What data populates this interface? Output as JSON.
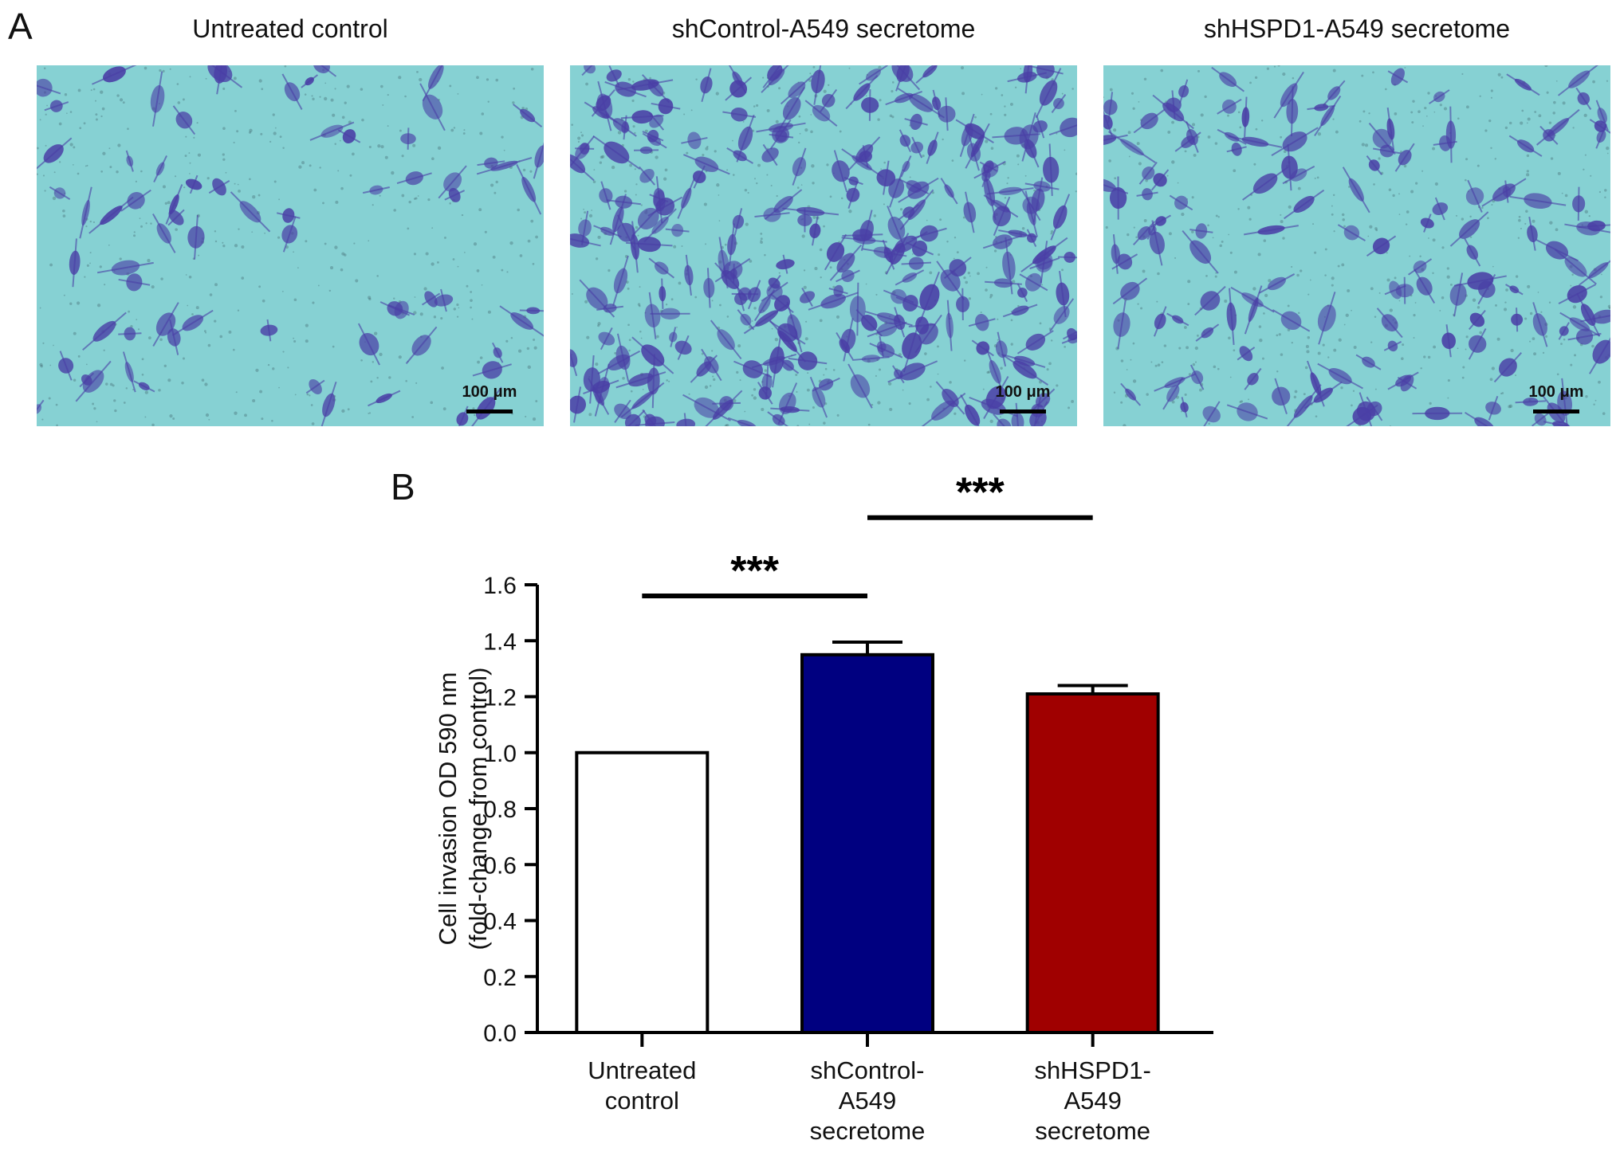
{
  "panel_a": {
    "letter": "A",
    "images": [
      {
        "title": "Untreated control",
        "scale_label": "100 μm",
        "density": 70
      },
      {
        "title": "shControl-A549 secretome",
        "scale_label": "100 μm",
        "density": 260
      },
      {
        "title": "shHSPD1-A549 secretome",
        "scale_label": "100 μm",
        "density": 140
      }
    ],
    "colors": {
      "background": "#86d1d3",
      "cell_stain": "#4a3fa6"
    }
  },
  "panel_b": {
    "letter": "B"
  },
  "chart_data": {
    "type": "bar",
    "categories": [
      [
        "Untreated",
        "control"
      ],
      [
        "shControl-",
        "A549",
        "secretome"
      ],
      [
        "shHSPD1-",
        "A549",
        "secretome"
      ]
    ],
    "values": [
      1.0,
      1.35,
      1.21
    ],
    "errors": [
      0.0,
      0.045,
      0.03
    ],
    "colors": [
      "#ffffff",
      "#000080",
      "#a00000"
    ],
    "ylabel": [
      "Cell invasion OD 590 nm",
      "(fold-change from control)"
    ],
    "ylim": [
      0,
      1.6
    ],
    "yticks": [
      0.0,
      0.2,
      0.4,
      0.6,
      0.8,
      1.0,
      1.2,
      1.4,
      1.6
    ],
    "grid": false,
    "significance": [
      {
        "from": 0,
        "to": 1,
        "label": "***",
        "y": 1.56
      },
      {
        "from": 1,
        "to": 2,
        "label": "***",
        "y": 1.84
      }
    ]
  }
}
